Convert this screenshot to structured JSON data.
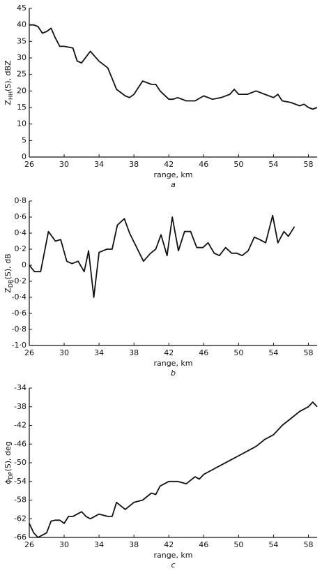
{
  "chart_data": [
    {
      "type": "line",
      "ylabel": [
        "Z",
        "HH",
        "(S), dBZ"
      ],
      "xlabel": "range, km",
      "caption": "a",
      "xlim": [
        26,
        59
      ],
      "xticks": [
        26,
        30,
        34,
        38,
        42,
        46,
        50,
        54,
        58
      ],
      "ylim": [
        0,
        45
      ],
      "yticks": [
        0,
        5,
        10,
        15,
        20,
        25,
        30,
        35,
        40,
        45
      ],
      "color": "#111111",
      "x": [
        26,
        26.5,
        27,
        27.5,
        28,
        28.5,
        29,
        29.5,
        30,
        31,
        31.5,
        32,
        33,
        34,
        35,
        36,
        37,
        37.5,
        38,
        39,
        40,
        40.5,
        41,
        42,
        42.5,
        43,
        44,
        45,
        46,
        47,
        48,
        49,
        49.5,
        50,
        51,
        52,
        53,
        54,
        54.5,
        55,
        56,
        57,
        57.5,
        58,
        58.5,
        59
      ],
      "values": [
        40,
        40,
        39.5,
        37.5,
        38,
        39,
        36,
        33.5,
        33.5,
        33,
        29,
        28.5,
        32,
        29,
        27,
        20.5,
        18.5,
        18,
        19,
        23,
        22,
        22,
        20,
        17.5,
        17.5,
        18,
        17,
        17,
        18.5,
        17.5,
        18,
        19,
        20.5,
        19,
        19,
        20,
        19,
        18,
        19,
        17,
        16.5,
        15.5,
        16,
        15,
        14.5,
        15
      ]
    },
    {
      "type": "line",
      "ylabel": [
        "Z",
        "DR",
        "(S), dB"
      ],
      "xlabel": "range, km",
      "caption": "b",
      "xlim": [
        26,
        59
      ],
      "xticks": [
        26,
        30,
        34,
        38,
        42,
        46,
        50,
        54,
        58
      ],
      "ylim": [
        -1.0,
        0.8
      ],
      "yticks": [
        {
          "value": -1.0,
          "label": "-1·0"
        },
        {
          "value": -0.8,
          "label": "-0·8"
        },
        {
          "value": -0.6,
          "label": "-0·6"
        },
        {
          "value": -0.4,
          "label": "-0·4"
        },
        {
          "value": -0.2,
          "label": "-0·2"
        },
        0,
        {
          "value": 0.2,
          "label": "0·2"
        },
        {
          "value": 0.4,
          "label": "0·4"
        },
        {
          "value": 0.6,
          "label": "0·6"
        },
        {
          "value": 0.8,
          "label": "0·8"
        }
      ],
      "color": "#111111",
      "x": [
        26,
        26.6,
        27.3,
        28.2,
        29,
        29.6,
        30.3,
        30.9,
        31.6,
        32.3,
        32.8,
        33.4,
        34,
        34.9,
        35.5,
        36.1,
        36.9,
        37.5,
        39.1,
        39.9,
        40.5,
        41.1,
        41.8,
        42.4,
        43.1,
        43.8,
        44.5,
        45.2,
        45.9,
        46.5,
        47.2,
        47.8,
        48.5,
        49.2,
        49.8,
        50.4,
        51.1,
        51.8,
        52.4,
        53.1,
        53.9,
        54.5,
        55.2,
        55.7,
        56.4
      ],
      "values": [
        0,
        -0.08,
        -0.08,
        0.42,
        0.3,
        0.32,
        0.05,
        0.02,
        0.05,
        -0.08,
        0.18,
        -0.4,
        0.16,
        0.2,
        0.2,
        0.5,
        0.58,
        0.4,
        0.05,
        0.15,
        0.2,
        0.38,
        0.12,
        0.6,
        0.18,
        0.42,
        0.42,
        0.22,
        0.22,
        0.28,
        0.15,
        0.12,
        0.22,
        0.15,
        0.15,
        0.12,
        0.18,
        0.35,
        0.32,
        0.28,
        0.62,
        0.28,
        0.42,
        0.36,
        0.48
      ]
    },
    {
      "type": "line",
      "ylabel": [
        "ϕ",
        "DP",
        "(S), deg"
      ],
      "xlabel": "range, km",
      "caption": "c",
      "xlim": [
        26,
        59
      ],
      "xticks": [
        26,
        30,
        34,
        38,
        42,
        46,
        50,
        54,
        58
      ],
      "ylim": [
        -66,
        -34
      ],
      "yticks": [
        -66,
        -62,
        -58,
        -54,
        -50,
        -46,
        -42,
        -38,
        -34
      ],
      "color": "#111111",
      "x": [
        26,
        26.5,
        27,
        27.5,
        28,
        28.5,
        29,
        29.5,
        30,
        30.5,
        31,
        32,
        32.5,
        33,
        33.5,
        34,
        35,
        35.5,
        36,
        37,
        38,
        39,
        40,
        40.5,
        41,
        42,
        43,
        44,
        45,
        45.5,
        46,
        47,
        48,
        49,
        50,
        51,
        52,
        53,
        54,
        55,
        56,
        57,
        58,
        58.5,
        59
      ],
      "values": [
        -63,
        -65,
        -66,
        -65.5,
        -65,
        -62.5,
        -62.3,
        -62.3,
        -63,
        -61.5,
        -61.5,
        -60.5,
        -61.5,
        -62,
        -61.5,
        -61,
        -61.5,
        -61.5,
        -58.5,
        -60,
        -58.5,
        -58,
        -56.5,
        -56.8,
        -55,
        -54,
        -54,
        -54.5,
        -53,
        -53.5,
        -52.5,
        -51.5,
        -50.5,
        -49.5,
        -48.5,
        -47.5,
        -46.5,
        -45,
        -44,
        -42,
        -40.5,
        -39,
        -38,
        -37,
        -38
      ]
    }
  ]
}
